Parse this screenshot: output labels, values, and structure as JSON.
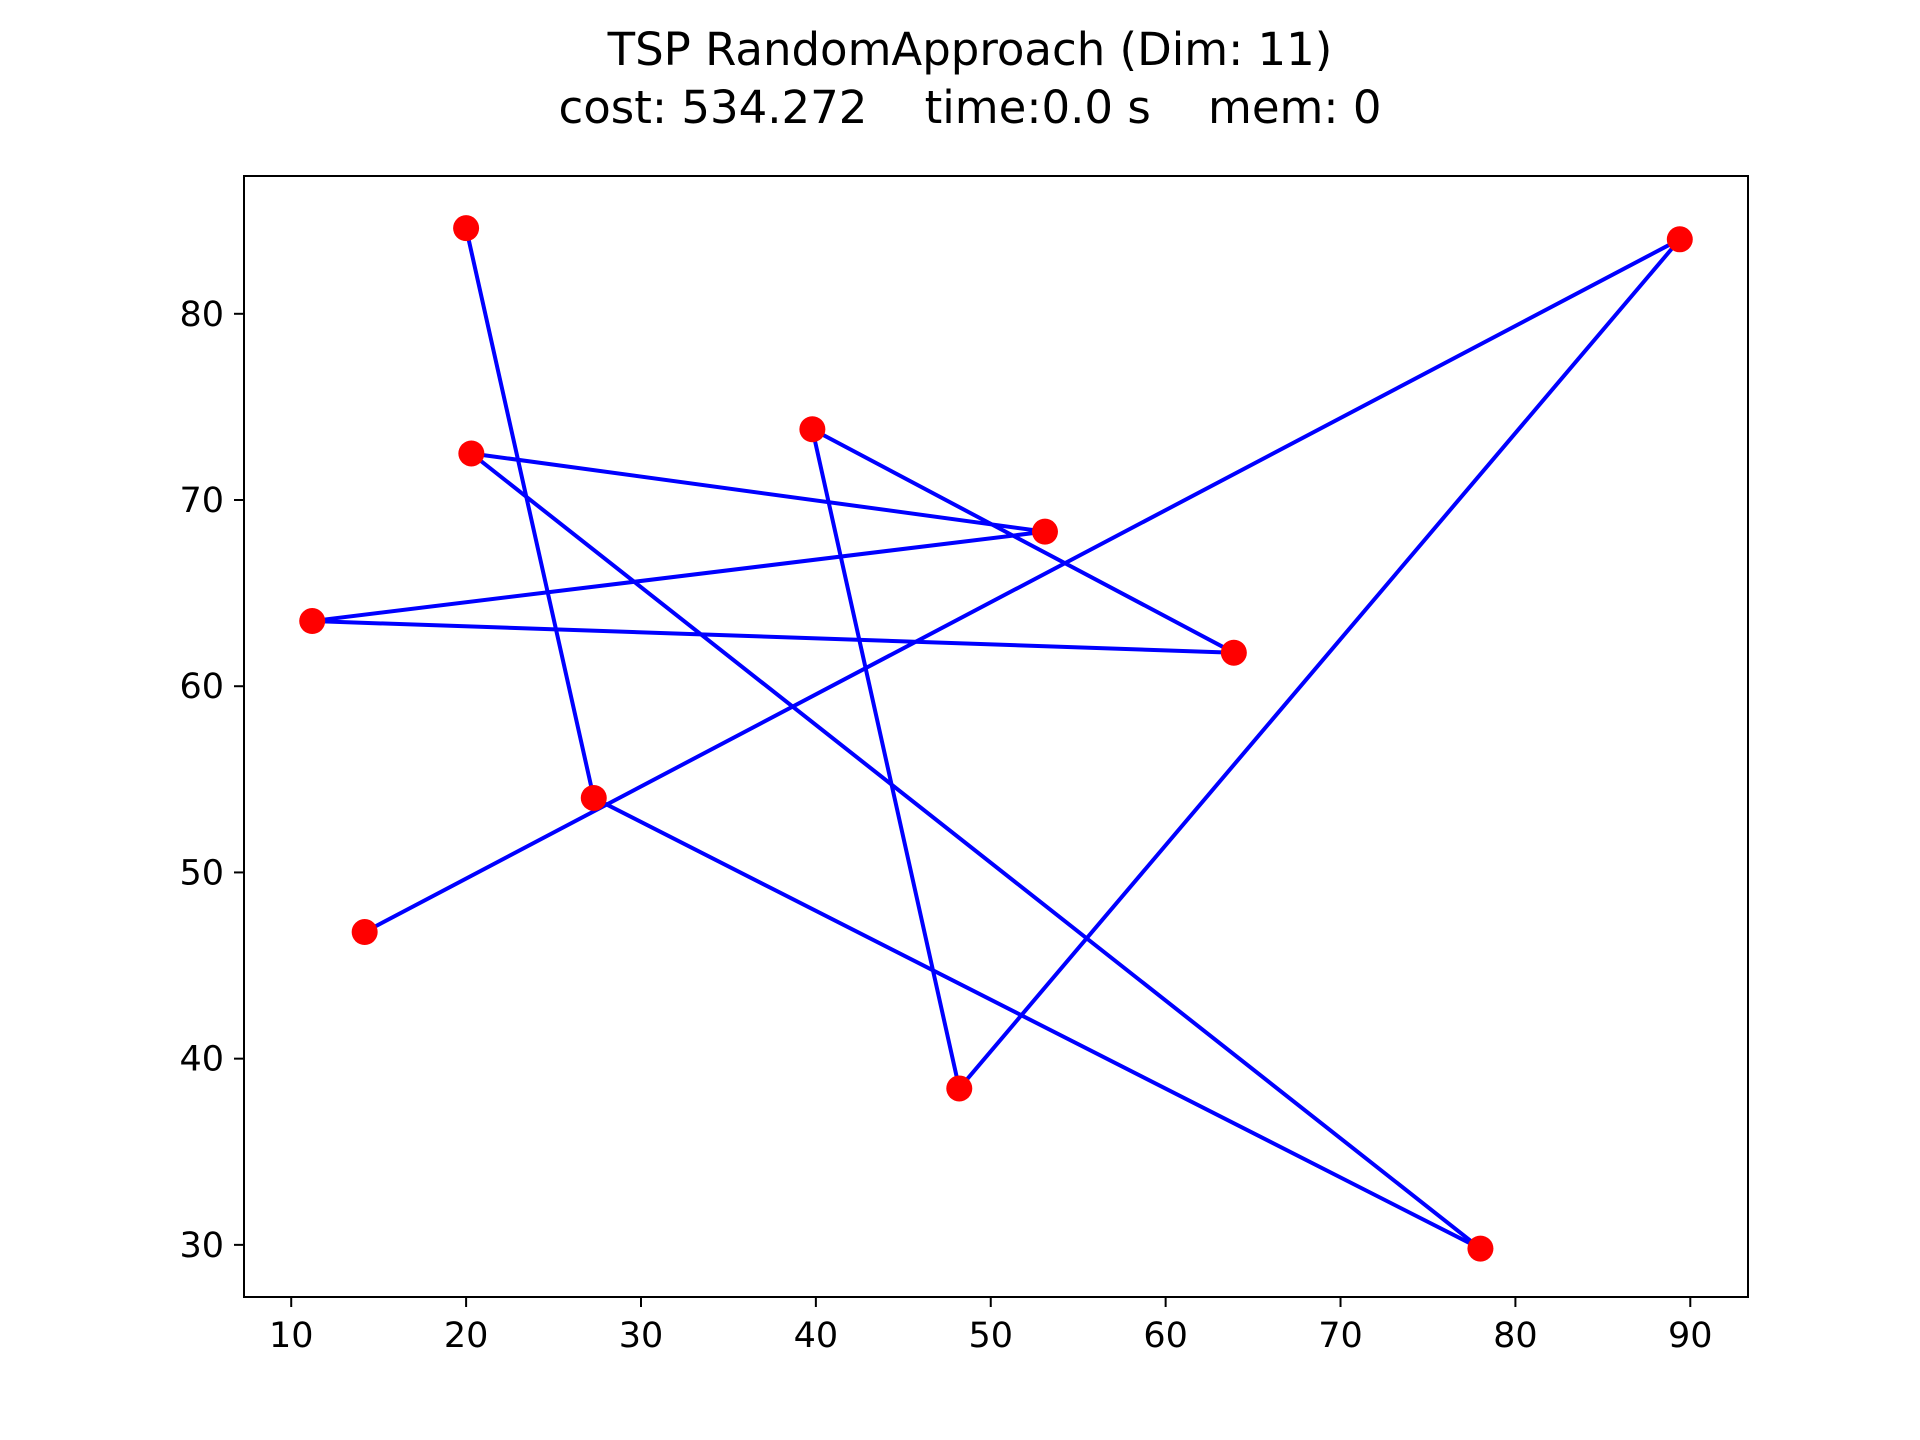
{
  "chart_data": {
    "type": "line",
    "title": "TSP RandomApproach (Dim: 11)",
    "subtitle": "cost: 534.272    time:0.0 s    mem: 0",
    "xlabel": "",
    "ylabel": "",
    "xlim": [
      7.3,
      93.3
    ],
    "ylim": [
      27.2,
      87.4
    ],
    "xticks": [
      10,
      20,
      30,
      40,
      50,
      60,
      70,
      80,
      90
    ],
    "yticks": [
      30,
      40,
      50,
      60,
      70,
      80
    ],
    "grid": false,
    "legend": "none",
    "route_color": "#0000ff",
    "city_color": "#ff0000",
    "cities": [
      {
        "x": 14.2,
        "y": 46.8
      },
      {
        "x": 89.4,
        "y": 84.0
      },
      {
        "x": 48.2,
        "y": 38.4
      },
      {
        "x": 39.8,
        "y": 73.8
      },
      {
        "x": 63.9,
        "y": 61.8
      },
      {
        "x": 11.2,
        "y": 63.5
      },
      {
        "x": 53.1,
        "y": 68.3
      },
      {
        "x": 20.3,
        "y": 72.5
      },
      {
        "x": 78.0,
        "y": 29.8
      },
      {
        "x": 27.3,
        "y": 54.0
      },
      {
        "x": 20.0,
        "y": 84.6
      }
    ]
  }
}
